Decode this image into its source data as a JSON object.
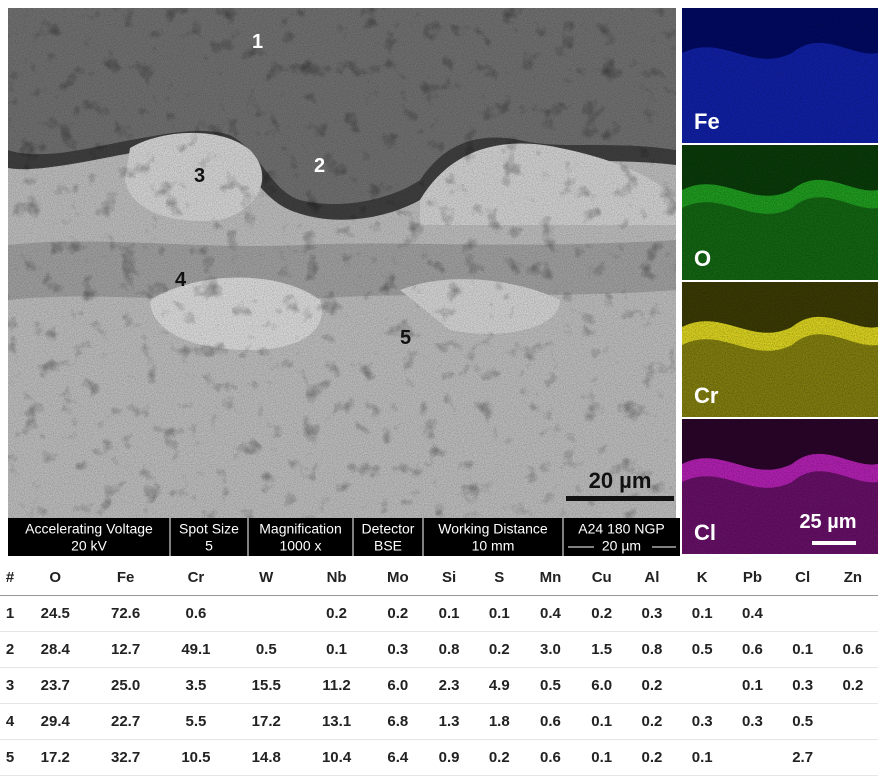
{
  "figure": {
    "sem_points": [
      "1",
      "2",
      "3",
      "4",
      "5"
    ],
    "sem_scale": "20 µm",
    "info_bar": [
      {
        "label": "Accelerating Voltage",
        "value": "20 kV"
      },
      {
        "label": "Spot Size",
        "value": "5"
      },
      {
        "label": "Magnification",
        "value": "1000 x"
      },
      {
        "label": "Detector",
        "value": "BSE"
      },
      {
        "label": "Working Distance",
        "value": "10 mm"
      },
      {
        "label": "A24 180 NGP",
        "value": "20 µm"
      }
    ],
    "maps": [
      "Fe",
      "O",
      "Cr",
      "Cl"
    ],
    "map_scale": "25 µm"
  },
  "table": {
    "header": [
      "#",
      "O",
      "Fe",
      "Cr",
      "W",
      "Nb",
      "Mo",
      "Si",
      "S",
      "Mn",
      "Cu",
      "Al",
      "K",
      "Pb",
      "Cl",
      "Zn"
    ],
    "rows": [
      [
        "1",
        "24.5",
        "72.6",
        "0.6",
        null,
        "0.2",
        "0.2",
        "0.1",
        "0.1",
        "0.4",
        "0.2",
        "0.3",
        "0.1",
        "0.4",
        null,
        null
      ],
      [
        "2",
        "28.4",
        "12.7",
        "49.1",
        "0.5",
        "0.1",
        "0.3",
        "0.8",
        "0.2",
        "3.0",
        "1.5",
        "0.8",
        "0.5",
        "0.6",
        "0.1",
        "0.6"
      ],
      [
        "3",
        "23.7",
        "25.0",
        "3.5",
        "15.5",
        "11.2",
        "6.0",
        "2.3",
        "4.9",
        "0.5",
        "6.0",
        "0.2",
        null,
        "0.1",
        "0.3",
        "0.2"
      ],
      [
        "4",
        "29.4",
        "22.7",
        "5.5",
        "17.2",
        "13.1",
        "6.8",
        "1.3",
        "1.8",
        "0.6",
        "0.1",
        "0.2",
        "0.3",
        "0.3",
        "0.5",
        null
      ],
      [
        "5",
        "17.2",
        "32.7",
        "10.5",
        "14.8",
        "10.4",
        "6.4",
        "0.9",
        "0.2",
        "0.6",
        "0.1",
        "0.2",
        "0.1",
        null,
        "2.7",
        null
      ]
    ]
  }
}
